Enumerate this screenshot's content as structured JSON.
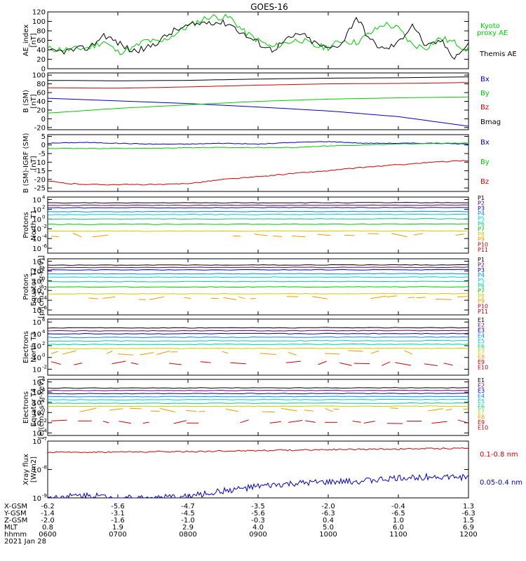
{
  "title": "GOES-16",
  "time_labels": [
    "0600",
    "0700",
    "0800",
    "0900",
    "1000",
    "1100",
    "1200"
  ],
  "footer": {
    "rows": [
      {
        "label": "X-GSM",
        "values": [
          "-6.2",
          "-5.6",
          "-4.7",
          "-3.5",
          "-2.0",
          "-0.4",
          "1.3"
        ]
      },
      {
        "label": "Y-GSM",
        "values": [
          "-1.4",
          "-3.1",
          "-4.5",
          "-5.6",
          "-6.3",
          "-6.5",
          "-6.3"
        ]
      },
      {
        "label": "Z-GSM",
        "values": [
          "-2.0",
          "-1.6",
          "-1.0",
          "-0.3",
          "0.4",
          "1.0",
          "1.5"
        ]
      },
      {
        "label": "MLT",
        "values": [
          "0.8",
          "1.9",
          "2.9",
          "4.0",
          "5.0",
          "6.0",
          "6.9"
        ]
      },
      {
        "label": "hhmm",
        "values": [
          "0600",
          "0700",
          "0800",
          "0900",
          "1000",
          "1100",
          "1200"
        ]
      }
    ],
    "date": "2021 Jan 28"
  },
  "colors": {
    "black": "#000000",
    "blue": "#0000cc",
    "green": "#00cc00",
    "red": "#cc0000",
    "p_bands": [
      "#000000",
      "#660066",
      "#0000cc",
      "#0088ff",
      "#00cccc",
      "#00cc88",
      "#00cc00",
      "#cccc00",
      "#ee9900",
      "#cc0000",
      "#cc0000"
    ],
    "e_bands": [
      "#000000",
      "#660066",
      "#0000cc",
      "#0088ff",
      "#00cccc",
      "#00cc88",
      "#cccc00",
      "#ee9900",
      "#cc0000",
      "#cc0000"
    ]
  },
  "chart_data": [
    {
      "type": "line",
      "ylabel": "AE_index [nT]",
      "ylim": [
        0,
        120
      ],
      "yticks": [
        "0",
        "20",
        "40",
        "60",
        "80",
        "100",
        "120"
      ],
      "x_hours": [
        6,
        12
      ],
      "series": [
        {
          "name": "Kyoto proxy AE",
          "color": "#00cc00",
          "x": [
            6.0,
            6.3,
            6.6,
            6.8,
            7.0,
            7.2,
            7.4,
            7.6,
            7.8,
            8.0,
            8.3,
            8.6,
            8.8,
            9.0,
            9.2,
            9.4,
            9.6,
            9.8,
            10.0,
            10.2,
            10.4,
            10.6,
            10.8,
            11.0,
            11.2,
            11.4,
            11.6,
            11.8,
            12.0
          ],
          "y": [
            42,
            40,
            45,
            58,
            35,
            42,
            60,
            55,
            72,
            90,
            110,
            108,
            78,
            60,
            45,
            55,
            62,
            48,
            45,
            60,
            55,
            75,
            95,
            85,
            50,
            45,
            65,
            55,
            40
          ]
        },
        {
          "name": "Themis AE",
          "color": "#000000",
          "x": [
            6.0,
            6.3,
            6.6,
            6.8,
            7.0,
            7.2,
            7.4,
            7.6,
            7.8,
            8.0,
            8.3,
            8.6,
            8.8,
            9.0,
            9.2,
            9.4,
            9.6,
            9.8,
            10.0,
            10.2,
            10.4,
            10.6,
            10.8,
            11.0,
            11.2,
            11.4,
            11.6,
            11.8,
            12.0
          ],
          "y": [
            35,
            38,
            45,
            72,
            55,
            38,
            42,
            60,
            80,
            90,
            100,
            95,
            72,
            55,
            40,
            60,
            75,
            55,
            42,
            55,
            110,
            60,
            40,
            55,
            95,
            45,
            60,
            25,
            50
          ]
        }
      ],
      "legend": [
        "Kyoto proxy AE",
        "Themis AE"
      ]
    },
    {
      "type": "line",
      "ylabel": "B (SM) [nT]",
      "ylim": [
        -25,
        105
      ],
      "yticks": [
        "-20",
        "0",
        "20",
        "40",
        "60",
        "80",
        "100"
      ],
      "series": [
        {
          "name": "Bx",
          "color": "#0000cc",
          "x": [
            6,
            7,
            8,
            9,
            10,
            11,
            12
          ],
          "y": [
            47,
            41,
            35,
            27,
            18,
            5,
            -17
          ]
        },
        {
          "name": "By",
          "color": "#00cc00",
          "x": [
            6,
            7,
            8,
            9,
            10,
            11,
            12
          ],
          "y": [
            13,
            24,
            32,
            40,
            45,
            48,
            50
          ]
        },
        {
          "name": "Bz",
          "color": "#cc0000",
          "x": [
            6,
            7,
            8,
            9,
            10,
            11,
            12
          ],
          "y": [
            71,
            70,
            73,
            77,
            80,
            81,
            83
          ]
        },
        {
          "name": "Bmag",
          "color": "#000000",
          "x": [
            6,
            7,
            8,
            9,
            10,
            11,
            12
          ],
          "y": [
            88,
            87,
            88,
            91,
            93,
            94,
            96
          ]
        }
      ]
    },
    {
      "type": "line",
      "ylabel": "B (SM)-IGRF (SM) [nT]",
      "ylim": [
        -27,
        6
      ],
      "yticks": [
        "-25",
        "-20",
        "-15",
        "-10",
        "-5",
        "0",
        "5"
      ],
      "series": [
        {
          "name": "Bx",
          "color": "#0000cc",
          "x": [
            6,
            6.5,
            7,
            7.5,
            8,
            8.5,
            9,
            9.5,
            10,
            10.5,
            11,
            11.5,
            12
          ],
          "y": [
            1,
            1.5,
            1,
            0.5,
            0.5,
            1,
            0.5,
            1.5,
            2,
            1,
            1,
            1,
            0.5
          ]
        },
        {
          "name": "By",
          "color": "#00cc00",
          "x": [
            6,
            6.5,
            7,
            7.5,
            8,
            8.5,
            9,
            9.5,
            10,
            10.5,
            11,
            11.5,
            12
          ],
          "y": [
            -2,
            -2,
            -2,
            -2,
            -1.5,
            -1.5,
            -1.5,
            -1.5,
            -0.5,
            0,
            0.5,
            1,
            1
          ]
        },
        {
          "name": "Bz",
          "color": "#cc0000",
          "x": [
            6,
            6.3,
            6.7,
            7.2,
            7.7,
            8.1,
            8.5,
            9,
            9.5,
            10,
            10.5,
            11,
            11.5,
            12
          ],
          "y": [
            -21,
            -22.5,
            -23,
            -23,
            -23,
            -22,
            -20,
            -18.5,
            -16.5,
            -15,
            -13,
            -11.5,
            -10,
            -9
          ]
        }
      ]
    },
    {
      "type": "line",
      "ylabel": "Protons North T1",
      "yscale": "log",
      "ylim": [
        -7,
        4.5
      ],
      "ytick_exponents": [
        4,
        2,
        0,
        -2,
        -4,
        -6
      ],
      "channels": [
        "P1",
        "P2",
        "P3",
        "P4",
        "P5",
        "P6",
        "P7",
        "P8",
        "P9",
        "P10",
        "P11"
      ],
      "log_levels": [
        3.3,
        2.8,
        2.3,
        1.5,
        0.9,
        0.0,
        -1.1,
        -2.5,
        -3.3,
        -99,
        -99
      ]
    },
    {
      "type": "line",
      "ylabel": "Protons Equator T2 [p/(cm2-s-sr-keV)]",
      "yscale": "log",
      "ylim": [
        -7,
        4.5
      ],
      "ytick_exponents": [
        4,
        2,
        0,
        -2,
        -4,
        -6
      ],
      "channels": [
        "P1",
        "P2",
        "P3",
        "P4",
        "P5",
        "P6",
        "P7",
        "P8",
        "P9",
        "P10",
        "P11"
      ],
      "log_levels": [
        3.2,
        2.7,
        2.2,
        1.4,
        0.7,
        -0.2,
        -1.3,
        -2.7,
        -3.5,
        -99,
        -99
      ]
    },
    {
      "type": "line",
      "ylabel": "Electrons North T3",
      "yscale": "log",
      "ylim": [
        -3,
        6.5
      ],
      "ytick_exponents": [
        6,
        4,
        2,
        0,
        -2
      ],
      "channels": [
        "E1",
        "E2",
        "E3",
        "E4",
        "E5",
        "E6",
        "E7",
        "E8",
        "E9",
        "E10"
      ],
      "log_levels": [
        5.0,
        4.5,
        4.0,
        3.4,
        2.8,
        2.2,
        1.5,
        0.8,
        -1.0,
        -99
      ]
    },
    {
      "type": "line",
      "ylabel": "Electrons Equator T4 [e/(cm2-s-sr-keV)]",
      "yscale": "log",
      "ylim": [
        -4.5,
        6.5
      ],
      "ytick_exponents": [
        6,
        4,
        2,
        0,
        -2,
        -4
      ],
      "channels": [
        "E1",
        "E2",
        "E3",
        "E4",
        "E5",
        "E6",
        "E7",
        "E8",
        "E9",
        "E10"
      ],
      "log_levels": [
        4.8,
        4.3,
        3.7,
        3.1,
        2.5,
        1.8,
        1.2,
        0.5,
        -1.8,
        -99
      ]
    },
    {
      "type": "line",
      "ylabel": "Xray flux [W/m2]",
      "yscale": "log",
      "ylim": [
        -9,
        -7
      ],
      "ytick_exponents": [
        -7,
        -8,
        -9
      ],
      "series": [
        {
          "name": "0.1-0.8 nm",
          "color": "#cc0000",
          "x": [
            6,
            7,
            8,
            9,
            10,
            11,
            12
          ],
          "log_y": [
            -7.4,
            -7.38,
            -7.37,
            -7.33,
            -7.3,
            -7.28,
            -7.25
          ]
        },
        {
          "name": "0.05-0.4 nm",
          "color": "#0000cc",
          "x": [
            6,
            6.5,
            7,
            7.5,
            8,
            8.5,
            9,
            9.5,
            10,
            10.5,
            11,
            11.5,
            12
          ],
          "log_y": [
            -9.0,
            -8.9,
            -9.0,
            -9.0,
            -8.95,
            -8.75,
            -8.6,
            -8.5,
            -8.45,
            -8.4,
            -8.3,
            -8.25,
            -8.28
          ]
        }
      ]
    }
  ]
}
